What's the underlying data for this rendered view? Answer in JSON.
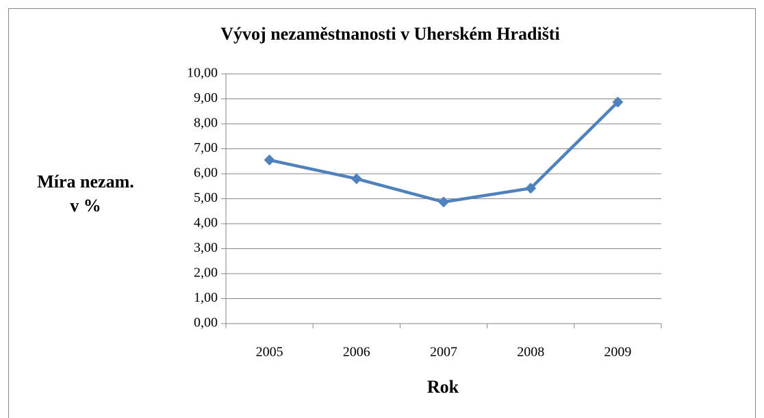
{
  "chart_data": {
    "type": "line",
    "title": "Vývoj nezaměstnanosti v Uherském Hradišti",
    "xlabel": "Rok",
    "ylabel": [
      "Míra nezam.",
      "v %"
    ],
    "categories": [
      "2005",
      "2006",
      "2007",
      "2008",
      "2009"
    ],
    "series": [
      {
        "name": "Míra nezam.",
        "color": "#4f81bd",
        "values": [
          6.55,
          5.8,
          4.87,
          5.42,
          8.87
        ]
      }
    ],
    "ylim": [
      0,
      10
    ],
    "yticks": [
      {
        "value": 0,
        "label": "0,00"
      },
      {
        "value": 1,
        "label": "1,00"
      },
      {
        "value": 2,
        "label": "2,00"
      },
      {
        "value": 3,
        "label": "3,00"
      },
      {
        "value": 4,
        "label": "4,00"
      },
      {
        "value": 5,
        "label": "5,00"
      },
      {
        "value": 6,
        "label": "6,00"
      },
      {
        "value": 7,
        "label": "7,00"
      },
      {
        "value": 8,
        "label": "8,00"
      },
      {
        "value": 9,
        "label": "9,00"
      },
      {
        "value": 10,
        "label": "10,00"
      }
    ],
    "grid": true,
    "legend": false
  }
}
